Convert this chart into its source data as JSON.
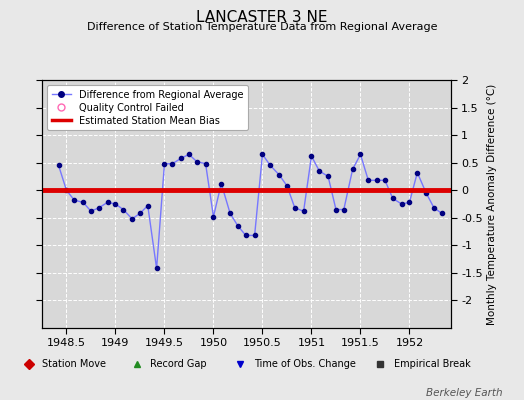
{
  "title": "LANCASTER 3 NE",
  "subtitle": "Difference of Station Temperature Data from Regional Average",
  "ylabel": "Monthly Temperature Anomaly Difference (°C)",
  "bias": 0.0,
  "xlim": [
    1948.25,
    1952.42
  ],
  "ylim": [
    -2.5,
    2.0
  ],
  "yticks": [
    -2.0,
    -1.5,
    -1.0,
    -0.5,
    0.0,
    0.5,
    1.0,
    1.5,
    2.0
  ],
  "xticks": [
    1948.5,
    1949.0,
    1949.5,
    1950.0,
    1950.5,
    1951.0,
    1951.5,
    1952.0
  ],
  "xticklabels": [
    "1948.5",
    "1949",
    "1949.5",
    "1950",
    "1950.5",
    "1951",
    "1951.5",
    "1952"
  ],
  "background_color": "#e8e8e8",
  "plot_bg_color": "#d8d8d8",
  "grid_color": "#ffffff",
  "line_color": "#7777ff",
  "marker_color": "#000080",
  "bias_color": "#dd0000",
  "watermark": "Berkeley Earth",
  "x": [
    1948.42,
    1948.5,
    1948.58,
    1948.67,
    1948.75,
    1948.83,
    1948.92,
    1949.0,
    1949.08,
    1949.17,
    1949.25,
    1949.33,
    1949.42,
    1949.5,
    1949.58,
    1949.67,
    1949.75,
    1949.83,
    1949.92,
    1950.0,
    1950.08,
    1950.17,
    1950.25,
    1950.33,
    1950.42,
    1950.5,
    1950.58,
    1950.67,
    1950.75,
    1950.83,
    1950.92,
    1951.0,
    1951.08,
    1951.17,
    1951.25,
    1951.33,
    1951.42,
    1951.5,
    1951.58,
    1951.67,
    1951.75,
    1951.83,
    1951.92,
    1952.0,
    1952.08,
    1952.17,
    1952.25,
    1952.33
  ],
  "y": [
    0.45,
    0.0,
    -0.18,
    -0.22,
    -0.38,
    -0.32,
    -0.22,
    -0.25,
    -0.35,
    -0.52,
    -0.42,
    -0.28,
    -1.42,
    0.48,
    0.48,
    0.58,
    0.65,
    0.52,
    0.48,
    -0.48,
    0.12,
    -0.42,
    -0.65,
    -0.82,
    -0.82,
    0.65,
    0.45,
    0.28,
    0.08,
    -0.32,
    -0.38,
    0.62,
    0.35,
    0.25,
    -0.35,
    -0.35,
    0.38,
    0.65,
    0.18,
    0.18,
    0.18,
    -0.15,
    -0.25,
    -0.22,
    0.32,
    -0.05,
    -0.32,
    -0.42
  ],
  "qc_color": "#ff69b4",
  "station_move_color": "#cc0000",
  "record_gap_color": "#228B22",
  "obs_change_color": "#0000cc",
  "empirical_break_color": "#333333"
}
